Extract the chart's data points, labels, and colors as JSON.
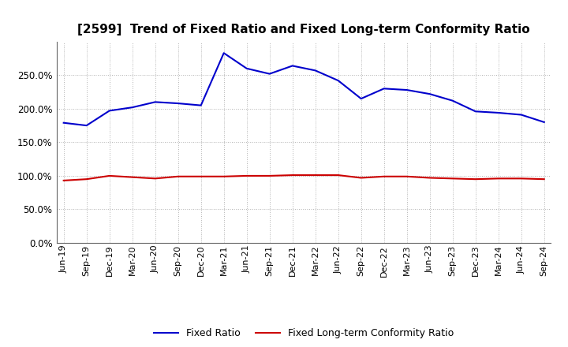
{
  "title": "[2599]  Trend of Fixed Ratio and Fixed Long-term Conformity Ratio",
  "x_labels": [
    "Jun-19",
    "Sep-19",
    "Dec-19",
    "Mar-20",
    "Jun-20",
    "Sep-20",
    "Dec-20",
    "Mar-21",
    "Jun-21",
    "Sep-21",
    "Dec-21",
    "Mar-22",
    "Jun-22",
    "Sep-22",
    "Dec-22",
    "Mar-23",
    "Jun-23",
    "Sep-23",
    "Dec-23",
    "Mar-24",
    "Jun-24",
    "Sep-24"
  ],
  "fixed_ratio": [
    179,
    175,
    197,
    202,
    210,
    208,
    205,
    283,
    260,
    252,
    264,
    257,
    242,
    215,
    230,
    228,
    222,
    212,
    196,
    194,
    191,
    180
  ],
  "fixed_lt_ratio": [
    93,
    95,
    100,
    98,
    96,
    99,
    99,
    99,
    100,
    100,
    101,
    101,
    101,
    97,
    99,
    99,
    97,
    96,
    95,
    96,
    96,
    95
  ],
  "fixed_ratio_color": "#0000CC",
  "fixed_lt_ratio_color": "#CC0000",
  "ylim": [
    0,
    300
  ],
  "yticks": [
    0,
    50,
    100,
    150,
    200,
    250
  ],
  "background_color": "#FFFFFF",
  "plot_bg_color": "#FFFFFF",
  "grid_color": "#AAAAAA",
  "legend_fixed_ratio": "Fixed Ratio",
  "legend_fixed_lt_ratio": "Fixed Long-term Conformity Ratio",
  "title_fontsize": 11,
  "tick_fontsize": 8,
  "legend_fontsize": 9
}
